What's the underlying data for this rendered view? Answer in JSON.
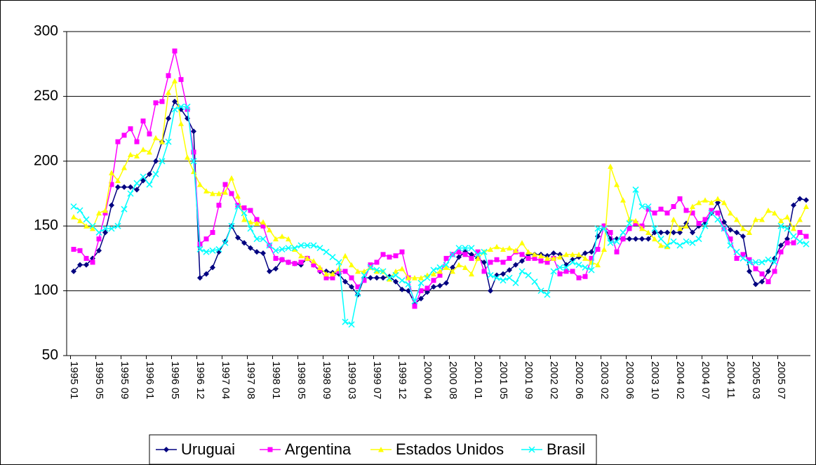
{
  "chart_data": {
    "type": "line",
    "categories": [
      "1995 01",
      null,
      null,
      null,
      "1995 05",
      null,
      null,
      null,
      "1995 09",
      null,
      null,
      null,
      "1996 01",
      null,
      null,
      null,
      "1996 05",
      null,
      null,
      null,
      "1996 12",
      null,
      null,
      null,
      "1997 04",
      null,
      null,
      null,
      "1997 08",
      null,
      null,
      null,
      "1998 01",
      null,
      null,
      null,
      "1998 05",
      null,
      null,
      null,
      "1998 09",
      null,
      null,
      null,
      "1999 03",
      null,
      null,
      null,
      "1999 07",
      null,
      null,
      null,
      "1999 12",
      null,
      null,
      null,
      "2000 04",
      null,
      null,
      null,
      "2000 08",
      null,
      null,
      null,
      "2001 01",
      null,
      null,
      null,
      "2001 05",
      null,
      null,
      null,
      "2001 09",
      null,
      null,
      null,
      "2002 02",
      null,
      null,
      null,
      "2002 06",
      null,
      null,
      null,
      "2003 02",
      null,
      null,
      null,
      "2003 06",
      null,
      null,
      null,
      "2003 10",
      null,
      null,
      null,
      "2004 02",
      null,
      null,
      null,
      "2004 07",
      null,
      null,
      null,
      "2004 11",
      null,
      null,
      null,
      "2005 03",
      null,
      null,
      null,
      "2005 07",
      null,
      null,
      null,
      null
    ],
    "series": [
      {
        "name": "Uruguai",
        "color": "#000080",
        "marker": "diamond",
        "values": [
          115,
          120,
          120,
          125,
          131,
          145,
          166,
          180,
          180,
          180,
          178,
          185,
          190,
          200,
          215,
          233,
          246,
          240,
          233,
          223,
          110,
          113,
          118,
          130,
          138,
          150,
          141,
          137,
          133,
          130,
          129,
          115,
          117,
          124,
          122,
          121,
          120,
          125,
          120,
          115,
          115,
          114,
          113,
          107,
          103,
          97,
          110,
          110,
          110,
          110,
          111,
          107,
          101,
          100,
          90,
          94,
          99,
          103,
          104,
          106,
          118,
          126,
          130,
          128,
          125,
          122,
          100,
          112,
          113,
          116,
          120,
          123,
          128,
          128,
          128,
          127,
          129,
          128,
          120,
          124,
          126,
          129,
          130,
          142,
          150,
          140,
          140,
          140,
          140,
          140,
          140,
          140,
          145,
          145,
          145,
          145,
          145,
          152,
          145,
          150,
          152,
          160,
          168,
          153,
          147,
          145,
          142,
          115,
          105,
          107,
          115,
          125,
          135,
          140,
          166,
          171,
          170
        ]
      },
      {
        "name": "Argentina",
        "color": "#ff00ff",
        "marker": "square",
        "values": [
          132,
          131,
          125,
          122,
          140,
          160,
          182,
          215,
          220,
          225,
          215,
          231,
          221,
          245,
          246,
          266,
          285,
          263,
          240,
          207,
          136,
          140,
          145,
          166,
          182,
          175,
          166,
          164,
          162,
          155,
          150,
          135,
          125,
          124,
          122,
          121,
          122,
          125,
          120,
          116,
          110,
          110,
          115,
          115,
          110,
          103,
          108,
          120,
          122,
          128,
          126,
          127,
          130,
          110,
          88,
          100,
          102,
          108,
          112,
          125,
          128,
          130,
          128,
          125,
          130,
          115,
          122,
          124,
          122,
          125,
          130,
          128,
          125,
          125,
          123,
          122,
          125,
          113,
          115,
          115,
          110,
          111,
          125,
          132,
          150,
          145,
          130,
          140,
          148,
          152,
          150,
          163,
          160,
          163,
          160,
          165,
          171,
          162,
          160,
          152,
          155,
          162,
          160,
          148,
          140,
          125,
          128,
          124,
          117,
          113,
          107,
          115,
          130,
          137,
          137,
          145,
          142
        ]
      },
      {
        "name": "Estados Unidos",
        "color": "#ffff00",
        "marker": "triangle",
        "values": [
          157,
          154,
          150,
          148,
          160,
          162,
          191,
          185,
          195,
          205,
          204,
          209,
          207,
          218,
          215,
          253,
          262,
          229,
          203,
          192,
          182,
          177,
          175,
          175,
          176,
          187,
          173,
          155,
          153,
          152,
          153,
          147,
          140,
          142,
          140,
          132,
          127,
          125,
          123,
          118,
          113,
          113,
          117,
          127,
          120,
          115,
          115,
          118,
          115,
          115,
          109,
          115,
          117,
          110,
          110,
          110,
          112,
          113,
          115,
          118,
          115,
          120,
          118,
          113,
          125,
          130,
          132,
          134,
          132,
          133,
          131,
          137,
          130,
          128,
          127,
          125,
          125,
          126,
          128,
          128,
          128,
          125,
          122,
          120,
          132,
          196,
          182,
          170,
          155,
          154,
          148,
          145,
          140,
          135,
          134,
          155,
          148,
          150,
          165,
          168,
          170,
          168,
          171,
          168,
          160,
          155,
          148,
          145,
          155,
          155,
          162,
          160,
          154,
          157,
          148,
          155,
          165
        ]
      },
      {
        "name": "Brasil",
        "color": "#00ffff",
        "marker": "cross",
        "values": [
          165,
          162,
          155,
          150,
          145,
          148,
          148,
          150,
          163,
          175,
          183,
          188,
          182,
          190,
          200,
          215,
          240,
          242,
          242,
          200,
          132,
          130,
          131,
          132,
          137,
          150,
          165,
          160,
          148,
          140,
          140,
          135,
          131,
          132,
          133,
          133,
          135,
          135,
          135,
          133,
          130,
          126,
          122,
          76,
          74,
          98,
          112,
          118,
          116,
          115,
          110,
          112,
          108,
          105,
          92,
          106,
          110,
          116,
          118,
          120,
          128,
          133,
          133,
          133,
          128,
          130,
          112,
          110,
          108,
          110,
          106,
          115,
          112,
          107,
          100,
          97,
          115,
          118,
          118,
          122,
          120,
          118,
          116,
          148,
          148,
          137,
          138,
          145,
          152,
          178,
          165,
          165,
          148,
          140,
          135,
          138,
          135,
          138,
          137,
          140,
          150,
          160,
          155,
          148,
          135,
          130,
          125,
          122,
          122,
          122,
          124,
          122,
          150,
          148,
          142,
          138,
          136
        ]
      }
    ],
    "ylim": [
      50,
      300
    ],
    "yticks": [
      50,
      100,
      150,
      200,
      250,
      300
    ],
    "grid": true,
    "legend": "bottom"
  }
}
